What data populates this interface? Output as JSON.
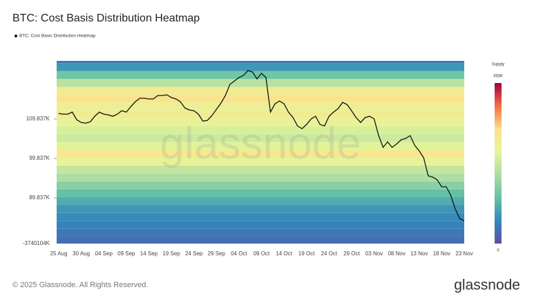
{
  "chart_data": {
    "type": "heatmap-line",
    "title": "BTC: Cost Basis Distribution Heatmap",
    "legend_name": "BTC: Cost Basis Distribution Heatmap",
    "watermark": "glassnode",
    "x": [
      "25 Aug",
      "26 Aug",
      "27 Aug",
      "28 Aug",
      "29 Aug",
      "30 Aug",
      "31 Aug",
      "01 Sep",
      "02 Sep",
      "03 Sep",
      "04 Sep",
      "05 Sep",
      "06 Sep",
      "07 Sep",
      "08 Sep",
      "09 Sep",
      "10 Sep",
      "11 Sep",
      "12 Sep",
      "13 Sep",
      "14 Sep",
      "15 Sep",
      "16 Sep",
      "17 Sep",
      "18 Sep",
      "19 Sep",
      "20 Sep",
      "21 Sep",
      "22 Sep",
      "23 Sep",
      "24 Sep",
      "25 Sep",
      "26 Sep",
      "27 Sep",
      "28 Sep",
      "29 Sep",
      "30 Sep",
      "01 Oct",
      "02 Oct",
      "03 Oct",
      "04 Oct",
      "05 Oct",
      "06 Oct",
      "07 Oct",
      "08 Oct",
      "09 Oct",
      "10 Oct",
      "11 Oct",
      "12 Oct",
      "13 Oct",
      "14 Oct",
      "15 Oct",
      "16 Oct",
      "17 Oct",
      "18 Oct",
      "19 Oct",
      "20 Oct",
      "21 Oct",
      "22 Oct",
      "23 Oct",
      "24 Oct",
      "25 Oct",
      "26 Oct",
      "27 Oct",
      "28 Oct",
      "29 Oct",
      "30 Oct",
      "31 Oct",
      "01 Nov",
      "02 Nov",
      "03 Nov",
      "04 Nov",
      "05 Nov",
      "06 Nov",
      "07 Nov",
      "08 Nov",
      "09 Nov",
      "10 Nov",
      "11 Nov",
      "12 Nov",
      "13 Nov",
      "14 Nov",
      "15 Nov",
      "16 Nov",
      "17 Nov",
      "18 Nov",
      "19 Nov",
      "20 Nov",
      "21 Nov",
      "22 Nov",
      "23 Nov"
    ],
    "xticks": [
      "25 Aug",
      "30 Aug",
      "04 Sep",
      "09 Sep",
      "14 Sep",
      "19 Sep",
      "24 Sep",
      "29 Sep",
      "04 Oct",
      "09 Oct",
      "14 Oct",
      "19 Oct",
      "24 Oct",
      "29 Oct",
      "03 Nov",
      "08 Nov",
      "13 Nov",
      "18 Nov",
      "23 Nov"
    ],
    "series": [
      {
        "name": "BTC: Cost Basis Distribution Heatmap",
        "color": "#111111",
        "values": [
          111240,
          111070,
          111070,
          111590,
          109660,
          108960,
          108780,
          109140,
          110540,
          111590,
          111070,
          110890,
          110540,
          111070,
          111940,
          111590,
          112990,
          114220,
          115100,
          115100,
          114920,
          114920,
          115800,
          115800,
          115980,
          115280,
          114920,
          114220,
          112640,
          112120,
          111940,
          111070,
          109310,
          109490,
          110710,
          112290,
          113870,
          115800,
          118610,
          119490,
          120360,
          120890,
          122120,
          121770,
          120010,
          121420,
          120360,
          111590,
          113700,
          114400,
          113700,
          111590,
          110190,
          108080,
          107380,
          108430,
          109840,
          110540,
          108430,
          108080,
          110540,
          111590,
          112470,
          114050,
          113520,
          111940,
          110190,
          108960,
          110190,
          110540,
          109840,
          105630,
          102640,
          104050,
          102640,
          103520,
          104570,
          104920,
          105630,
          103170,
          101770,
          100010,
          95450,
          95100,
          94400,
          92640,
          92640,
          90540,
          87030,
          84570,
          84050
        ]
      }
    ],
    "heatmap": {
      "price_levels": [
        78000,
        80000,
        82000,
        84000,
        86000,
        88000,
        90000,
        92000,
        94000,
        96000,
        98000,
        100000,
        102000,
        104000,
        106000,
        108000,
        110000,
        112000,
        114000,
        116000,
        118000,
        120000,
        122000,
        124000
      ],
      "band_width": 2000,
      "supply": [
        30000,
        40000,
        50000,
        60000,
        70000,
        90000,
        110000,
        140000,
        170000,
        190000,
        230000,
        260000,
        220000,
        200000,
        210000,
        230000,
        250000,
        240000,
        270000,
        250000,
        180000,
        120000,
        70000,
        40000
      ]
    },
    "ylim": [
      78258,
      124574
    ],
    "yticks": [
      {
        "value": 89837,
        "label": "89.837K"
      },
      {
        "value": 99837,
        "label": "99.837K"
      },
      {
        "value": 109837,
        "label": "109.837K"
      }
    ],
    "axis_floor_label": "-3740104K",
    "colorbar": {
      "title": "Supply",
      "lim": [
        0,
        393000
      ],
      "ticks": [
        {
          "value": 0,
          "label": "0"
        },
        {
          "value": 393000,
          "label": "393K"
        }
      ],
      "colorscale": [
        "#5e4fa2",
        "#3288bd",
        "#66c2a5",
        "#abdda4",
        "#e6f598",
        "#fee08b",
        "#f46d43",
        "#9e0142"
      ]
    },
    "copyright": "© 2025 Glassnode. All Rights Reserved.",
    "logo": "glassnode"
  }
}
